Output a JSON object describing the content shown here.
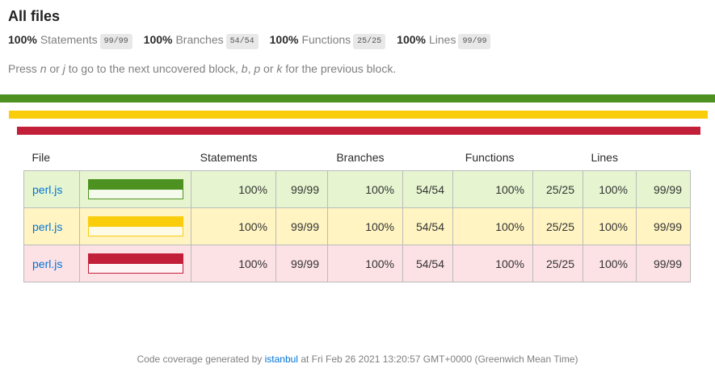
{
  "header": {
    "title": "All files",
    "summary": [
      {
        "pct": "100%",
        "label": "Statements",
        "fraction": "99/99"
      },
      {
        "pct": "100%",
        "label": "Branches",
        "fraction": "54/54"
      },
      {
        "pct": "100%",
        "label": "Functions",
        "fraction": "25/25"
      },
      {
        "pct": "100%",
        "label": "Lines",
        "fraction": "99/99"
      }
    ]
  },
  "hint": {
    "segments": [
      {
        "text": "Press "
      },
      {
        "text": "n",
        "em": true
      },
      {
        "text": " or "
      },
      {
        "text": "j",
        "em": true
      },
      {
        "text": " to go to the next uncovered block, "
      },
      {
        "text": "b",
        "em": true
      },
      {
        "text": ", "
      },
      {
        "text": "p",
        "em": true
      },
      {
        "text": " or "
      },
      {
        "text": "k",
        "em": true
      },
      {
        "text": " for the previous block."
      }
    ]
  },
  "status_lines": [
    {
      "level": "high",
      "color": "#4D9221"
    },
    {
      "level": "medium",
      "color": "#F9CD0B"
    },
    {
      "level": "low",
      "color": "#C21F39"
    }
  ],
  "table": {
    "headers": {
      "file": "File",
      "statements": "Statements",
      "branches": "Branches",
      "functions": "Functions",
      "lines": "Lines"
    },
    "rows": [
      {
        "file": "perl.js",
        "level": "high",
        "bar_fill_pct": 100,
        "statements_pct": "100%",
        "statements": "99/99",
        "branches_pct": "100%",
        "branches": "54/54",
        "functions_pct": "100%",
        "functions": "25/25",
        "lines_pct": "100%",
        "lines": "99/99"
      },
      {
        "file": "perl.js",
        "level": "medium",
        "bar_fill_pct": 100,
        "statements_pct": "100%",
        "statements": "99/99",
        "branches_pct": "100%",
        "branches": "54/54",
        "functions_pct": "100%",
        "functions": "25/25",
        "lines_pct": "100%",
        "lines": "99/99"
      },
      {
        "file": "perl.js",
        "level": "low",
        "bar_fill_pct": 100,
        "statements_pct": "100%",
        "statements": "99/99",
        "branches_pct": "100%",
        "branches": "54/54",
        "functions_pct": "100%",
        "functions": "25/25",
        "lines_pct": "100%",
        "lines": "99/99"
      }
    ]
  },
  "footer": {
    "prefix": "Code coverage generated by ",
    "link": "istanbul",
    "suffix": " at Fri Feb 26 2021 13:20:57 GMT+0000 (Greenwich Mean Time)"
  },
  "colors": {
    "status_high": "#4D9221",
    "status_medium": "#F9CD0B",
    "status_low": "#C21F39",
    "row_high_bg": "#E6F5D0",
    "row_medium_bg": "#FFF4C2",
    "row_low_bg": "#FCE1E5",
    "fraction_badge_bg": "#E8E8E8",
    "link": "#0074D9"
  }
}
